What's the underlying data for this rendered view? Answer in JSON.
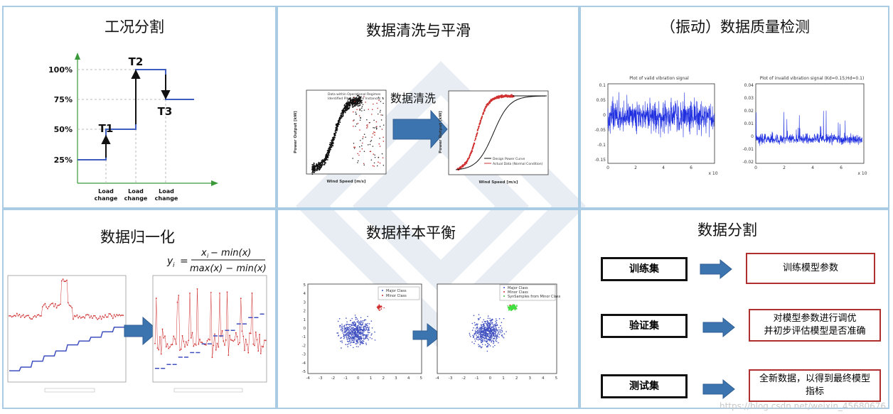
{
  "panels": {
    "condition_split": {
      "title": "工况分割",
      "y_ticks": [
        "100%",
        "75%",
        "50%",
        "25%"
      ],
      "points": [
        "T1",
        "T2",
        "T3"
      ],
      "x_labels": [
        "Load change",
        "Load change",
        "Load change"
      ]
    },
    "cleaning": {
      "title": "数据清洗与平滑",
      "arrow_label": "数据清洗",
      "left_legend": [
        "Data within Operational Regimes",
        "Identified Pitch Control Instances"
      ],
      "right_legend": [
        "Design Power Curve",
        "Actual Data (Normal Condition)"
      ],
      "xlabel": "Wind Speed [m/s]",
      "ylabel": "Power Output [kW]"
    },
    "quality": {
      "title": "（振动）数据质量检测",
      "left_plot_title": "Plot of valid vibration signal",
      "right_plot_title": "Plot of invalid vibration signal (Kd=0.15;Hd=0.1)",
      "left_y_ticks": [
        "0.1",
        "0.05",
        "0",
        "-0.05",
        "-0.1",
        "-0.15"
      ],
      "right_y_ticks": [
        "0.04",
        "0.03",
        "0.02",
        "0.01",
        "0",
        "-0.01",
        "-0.02"
      ],
      "x_ticks": [
        "0",
        "2",
        "4",
        "6"
      ],
      "x_suffix": "x 10"
    },
    "normalization": {
      "title": "数据归一化",
      "formula_lhs": "y",
      "formula_sub": "i",
      "formula_num": "x",
      "formula_num_rest": " − min(x)",
      "formula_den": "max(x) − min(x)"
    },
    "balance": {
      "title": "数据样本平衡",
      "left_legend": [
        "Major Class",
        "Minor Class"
      ],
      "right_legend": [
        "Major Class",
        "Minor Class",
        "SynSamples from Minor Class"
      ],
      "y_ticks": [
        "5",
        "4",
        "3",
        "2",
        "1",
        "0",
        "-1",
        "-2",
        "-3",
        "-4",
        "-5"
      ],
      "x_ticks": [
        "-4",
        "-3",
        "-2",
        "-1",
        "0",
        "1",
        "2",
        "3",
        "4",
        "5"
      ]
    },
    "split": {
      "title": "数据分割",
      "rows": [
        {
          "set": "训练集",
          "desc": "训练模型参数"
        },
        {
          "set": "验证集",
          "desc": "对模型参数进行调优\n并初步评估模型是否准确"
        },
        {
          "set": "测试集",
          "desc": "全新数据，以得到最终模型\n指标"
        }
      ]
    }
  },
  "footer": "https://blog.csdn.net/weixin_45680676",
  "colors": {
    "border": "#a9cbe3",
    "arrow": "#3c74b0",
    "blue_line": "#3f5cbf",
    "red": "#d03030",
    "green": "#3fbf3f"
  }
}
